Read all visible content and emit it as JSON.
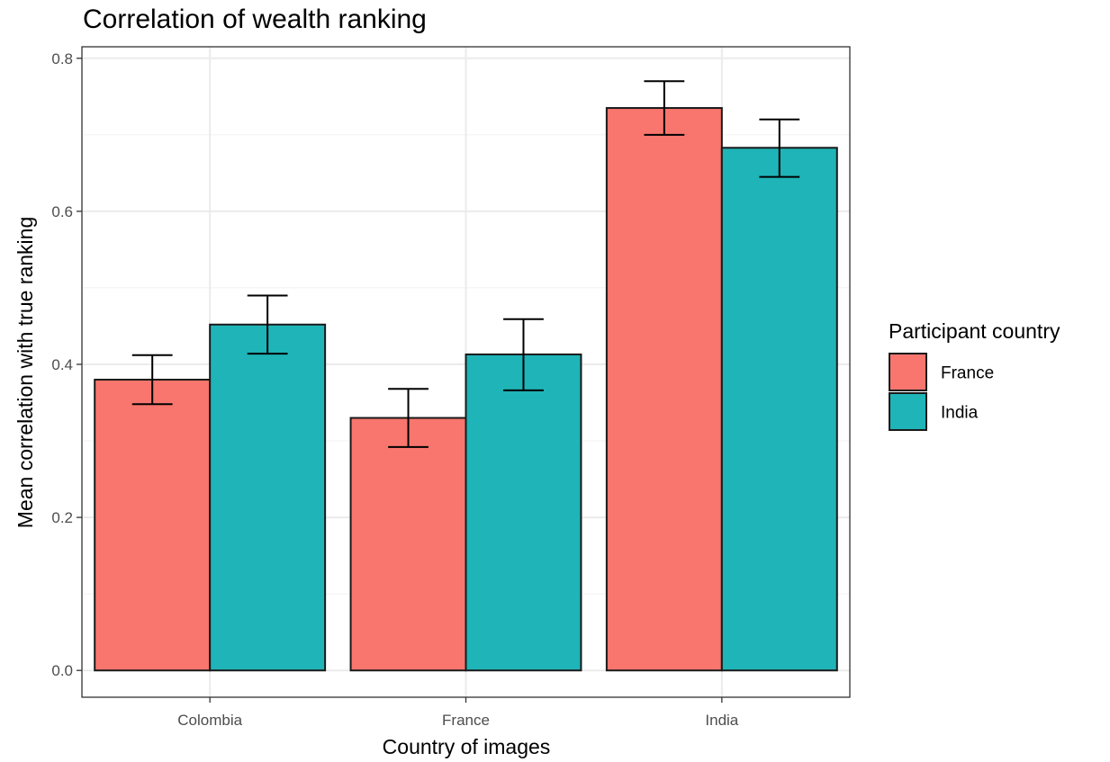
{
  "chart_data": {
    "type": "bar",
    "title": "Correlation of wealth ranking",
    "xlabel": "Country of images",
    "ylabel": "Mean correlation with true ranking",
    "categories": [
      "Colombia",
      "France",
      "India"
    ],
    "series": [
      {
        "name": "France",
        "color": "#f8766d",
        "values": [
          0.38,
          0.33,
          0.735
        ],
        "error_low": [
          0.348,
          0.292,
          0.7
        ],
        "error_high": [
          0.412,
          0.368,
          0.77
        ]
      },
      {
        "name": "India",
        "color": "#1fb4b8",
        "values": [
          0.452,
          0.413,
          0.683
        ],
        "error_low": [
          0.414,
          0.366,
          0.645
        ],
        "error_high": [
          0.49,
          0.459,
          0.72
        ]
      }
    ],
    "ylim": [
      -0.035,
      0.815
    ],
    "yticks": [
      "0.0",
      "0.2",
      "0.4",
      "0.6",
      "0.8"
    ],
    "ytick_values": [
      0,
      0.2,
      0.4,
      0.6,
      0.8
    ],
    "legend_title": "Participant country",
    "legend_position": "right",
    "grid": true
  }
}
